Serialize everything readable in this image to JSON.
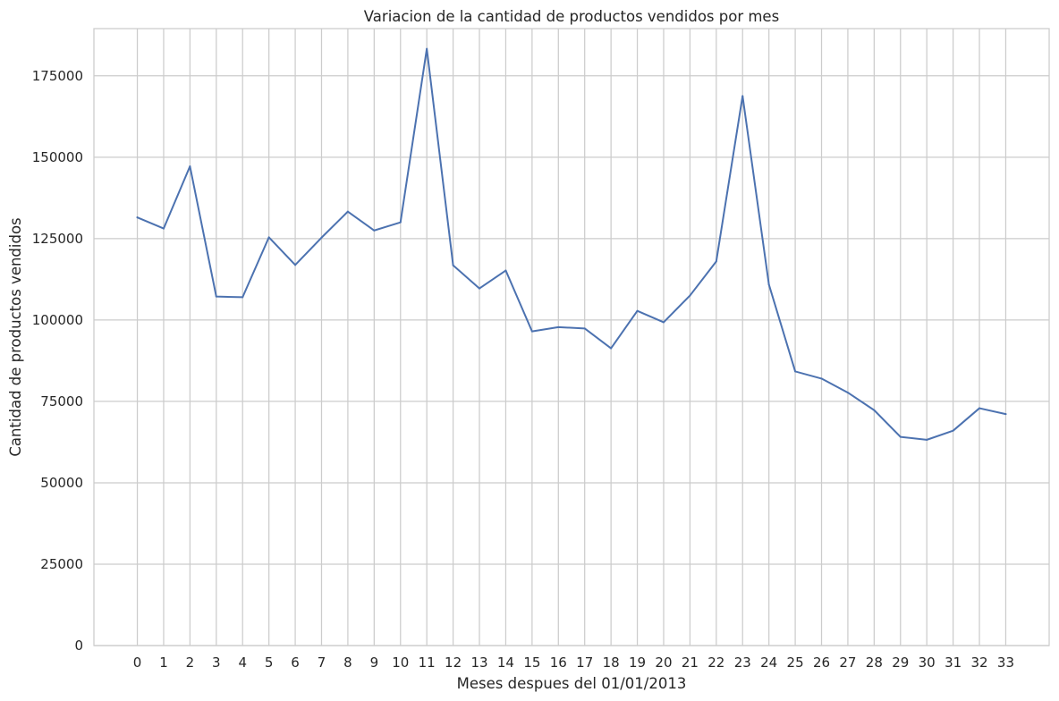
{
  "chart_data": {
    "type": "line",
    "title": "Variacion de la cantidad de productos vendidos por mes",
    "xlabel": "Meses despues del 01/01/2013",
    "ylabel": "Cantidad de productos vendidos",
    "x": [
      0,
      1,
      2,
      3,
      4,
      5,
      6,
      7,
      8,
      9,
      10,
      11,
      12,
      13,
      14,
      15,
      16,
      17,
      18,
      19,
      20,
      21,
      22,
      23,
      24,
      25,
      26,
      27,
      28,
      29,
      30,
      31,
      32,
      33
    ],
    "series": [
      {
        "values": [
          131500,
          128100,
          147200,
          107200,
          107000,
          125400,
          116900,
          125300,
          133300,
          127500,
          130000,
          183300,
          116800,
          109700,
          115200,
          96500,
          97800,
          97400,
          91300,
          102800,
          99300,
          107500,
          118000,
          168800,
          110900,
          84200,
          82000,
          77700,
          72300,
          64100,
          63200,
          66000,
          72900,
          71100
        ],
        "color": "#4c72b0"
      }
    ],
    "xlim": [
      -1.65,
      34.65
    ],
    "ylim": [
      0,
      189500
    ],
    "yticks": [
      0,
      25000,
      50000,
      75000,
      100000,
      125000,
      150000,
      175000
    ],
    "grid": true,
    "style": {
      "line_color": "#4c72b0",
      "grid_color": "#cccccc",
      "axis_color": "#cccccc",
      "text_color": "#262626"
    }
  }
}
